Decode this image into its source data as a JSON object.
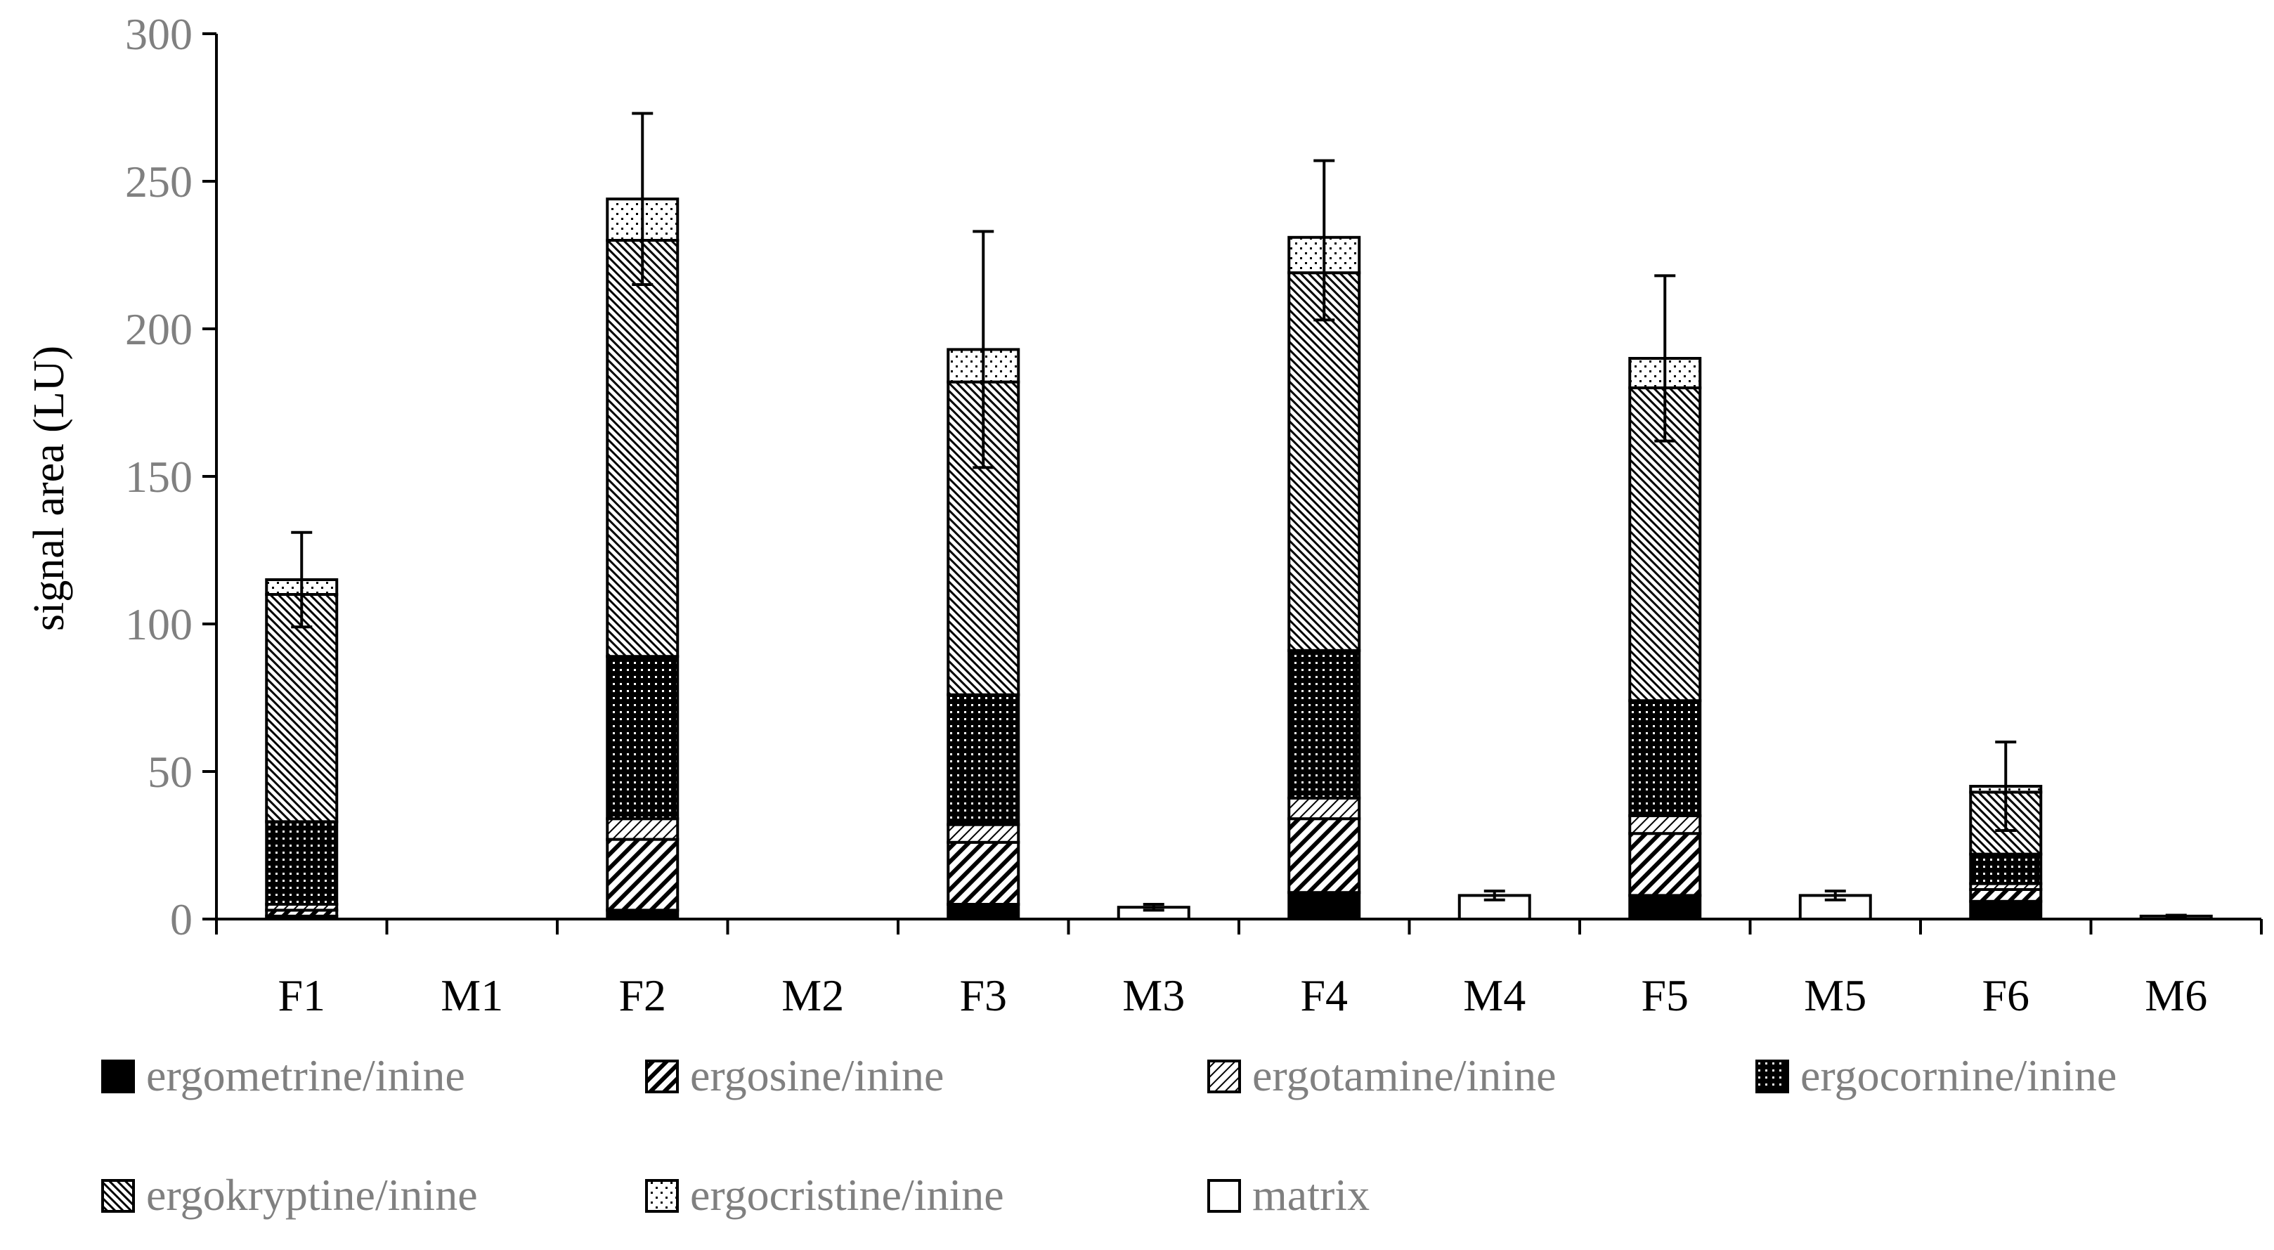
{
  "chart_data": {
    "type": "bar",
    "stacked": true,
    "title": "",
    "xlabel": "",
    "ylabel": "signal area (LU)",
    "ylim": [
      0,
      300
    ],
    "yticks": [
      0,
      50,
      100,
      150,
      200,
      250,
      300
    ],
    "ytick_labels": [
      "0",
      "50",
      "100",
      "150",
      "200",
      "250",
      "300"
    ],
    "grid": false,
    "legend_position": "bottom",
    "categories": [
      "F1",
      "M1",
      "F2",
      "M2",
      "F3",
      "M3",
      "F4",
      "M4",
      "F5",
      "M5",
      "F6",
      "M6"
    ],
    "series": [
      {
        "name": "ergometrine/inine",
        "pattern": "solid",
        "values": [
          1,
          0,
          3,
          0,
          5,
          0,
          9,
          0,
          8,
          0,
          6,
          0
        ]
      },
      {
        "name": "ergosine/inine",
        "pattern": "wide-diagonal",
        "values": [
          2,
          0,
          24,
          0,
          21,
          0,
          25,
          0,
          21,
          0,
          4,
          0
        ]
      },
      {
        "name": "ergotamine/inine",
        "pattern": "light-diagonal",
        "values": [
          2,
          0,
          7,
          0,
          6,
          0,
          7,
          0,
          6,
          0,
          2,
          0
        ]
      },
      {
        "name": "ergocornine/inine",
        "pattern": "dots",
        "values": [
          28,
          0,
          55,
          0,
          44,
          0,
          50,
          0,
          39,
          0,
          10,
          0
        ]
      },
      {
        "name": "ergokryptine/inine",
        "pattern": "dense-diagonal",
        "values": [
          77,
          0,
          141,
          0,
          106,
          0,
          128,
          0,
          106,
          0,
          21,
          0
        ]
      },
      {
        "name": "ergocristine/inine",
        "pattern": "sparse-dots",
        "values": [
          5,
          0,
          14,
          0,
          11,
          0,
          12,
          0,
          10,
          0,
          2,
          0
        ]
      },
      {
        "name": "matrix",
        "pattern": "white",
        "values": [
          0,
          0,
          0,
          0,
          0,
          4,
          0,
          8,
          0,
          8,
          0,
          1
        ]
      }
    ],
    "totals": [
      115,
      0,
      244,
      0,
      193,
      4,
      230,
      8,
      190,
      8,
      45,
      1
    ],
    "error_bars": [
      16,
      0,
      29,
      0,
      40,
      1,
      27,
      1.5,
      28,
      1.5,
      15,
      0.3
    ]
  }
}
